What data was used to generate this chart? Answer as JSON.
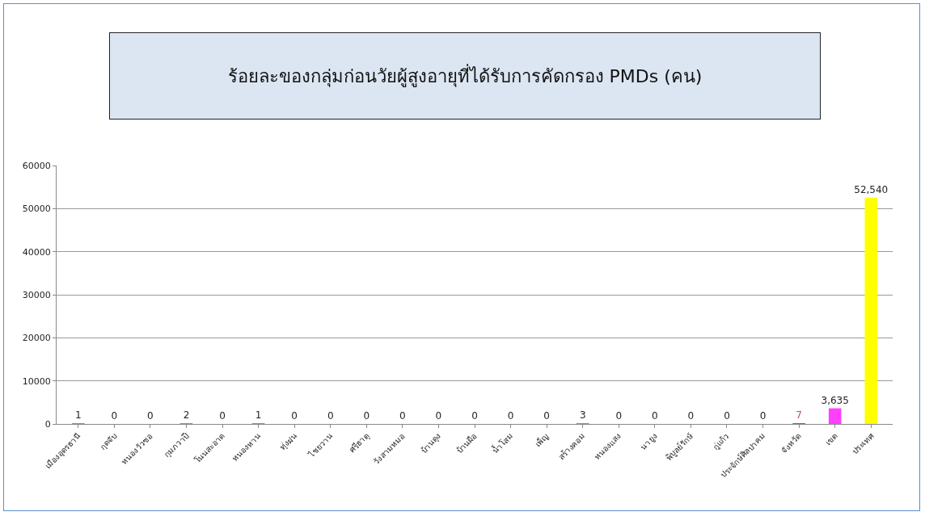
{
  "chart_data": {
    "type": "bar",
    "title": "ร้อยละของกลุ่มก่อนวัยผู้สูงอายุที่ได้รับการคัดกรอง PMDs (คน)",
    "categories": [
      "เมืองอุดรธานี",
      "กุดจับ",
      "หนองวัวซอ",
      "กุมภวาปี",
      "โนนสะอาด",
      "หนองหาน",
      "ทุ่งฝน",
      "ไชยวาน",
      "ศรีธาตุ",
      "วังสามหมอ",
      "บ้านดุง",
      "บ้านผือ",
      "น้ำโสม",
      "เพ็ญ",
      "สร้างคอม",
      "หนองแสง",
      "นายูง",
      "พิบูลย์รักษ์",
      "กู่แก้ว",
      "ประจักษ์ศิลปาคม",
      "จังหวัด",
      "เขต",
      "ประเทศ"
    ],
    "values": [
      1,
      0,
      0,
      2,
      0,
      1,
      0,
      0,
      0,
      0,
      0,
      0,
      0,
      0,
      3,
      0,
      0,
      0,
      0,
      0,
      7,
      3635,
      52540
    ],
    "value_labels": [
      "1",
      "0",
      "0",
      "2",
      "0",
      "1",
      "0",
      "0",
      "0",
      "0",
      "0",
      "0",
      "0",
      "0",
      "3",
      "0",
      "0",
      "0",
      "0",
      "0",
      "7",
      "3,635",
      "52,540"
    ],
    "colors": [
      "#4bacc6",
      "#4bacc6",
      "#4bacc6",
      "#4bacc6",
      "#4bacc6",
      "#4bacc6",
      "#4bacc6",
      "#4bacc6",
      "#4bacc6",
      "#4bacc6",
      "#4bacc6",
      "#4bacc6",
      "#4bacc6",
      "#4bacc6",
      "#4bacc6",
      "#4bacc6",
      "#4bacc6",
      "#4bacc6",
      "#4bacc6",
      "#4bacc6",
      "#c0504d",
      "#ff40ff",
      "#ffff00"
    ],
    "ylim": [
      0,
      60000
    ],
    "yticks": [
      0,
      10000,
      20000,
      30000,
      40000,
      50000,
      60000
    ],
    "grid": "y"
  }
}
